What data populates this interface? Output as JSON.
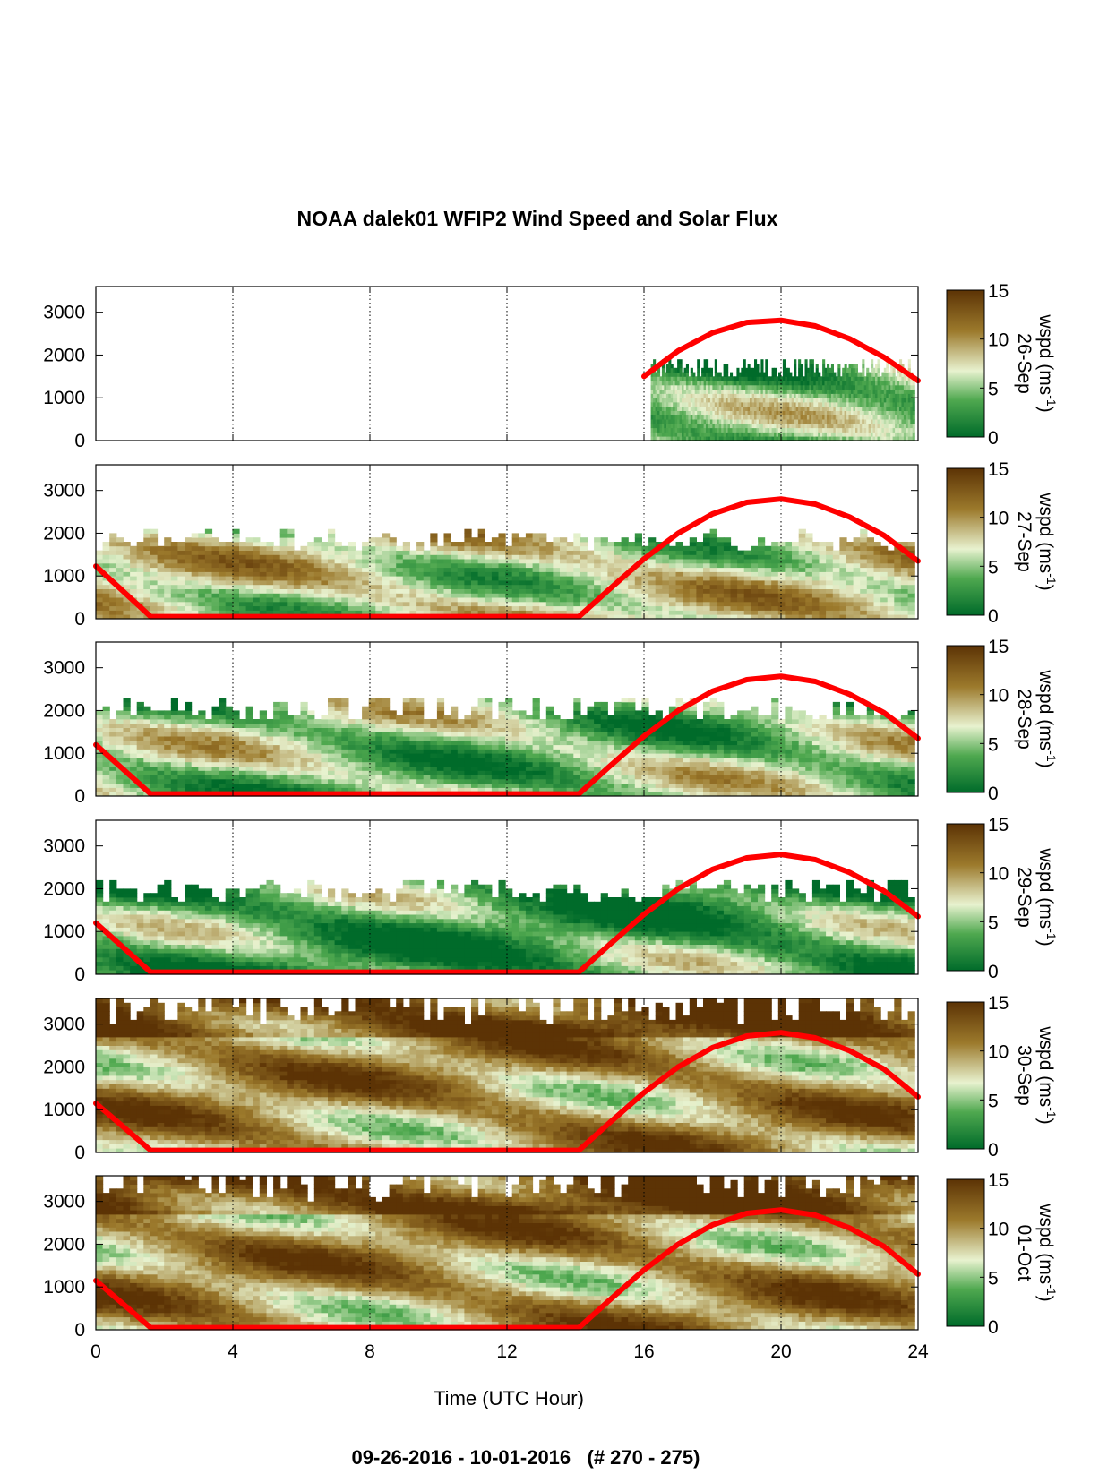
{
  "title": "NOAA dalek01 WFIP2 Wind Speed and Solar Flux",
  "footer": "09-26-2016 - 10-01-2016   (# 270 - 275)",
  "chart_data": {
    "type": "heatmap",
    "title": "NOAA dalek01 WFIP2 Wind Speed and Solar Flux",
    "xlabel": "Time (UTC Hour)",
    "xlim": [
      0,
      24
    ],
    "xticks": [
      "0",
      "4",
      "8",
      "12",
      "16",
      "20",
      "24"
    ],
    "ylim": [
      0,
      3600
    ],
    "yticks": [
      "0",
      "1000",
      "2000",
      "3000"
    ],
    "vertical_gridlines_at": [
      4,
      8,
      12,
      16,
      20,
      24
    ],
    "colorbar": {
      "label_prefix": "wspd (ms",
      "label_exponent": "-1",
      "label_suffix": ")",
      "ticks": [
        "0",
        "5",
        "10",
        "15"
      ],
      "range": [
        0,
        15
      ],
      "colors": [
        "#006b2a",
        "#4fa84f",
        "#e8f2cf",
        "#9c7a2c",
        "#5c3305"
      ]
    },
    "solar_flux_color": "#ff0000",
    "panels": [
      {
        "date": "26-Sep",
        "data_start_hour": 16.2,
        "data_end_hour": 23.9,
        "top_height": 1650,
        "mean_wspd": 4,
        "solar_curve": [
          [
            16.0,
            1500
          ],
          [
            17,
            2100
          ],
          [
            18,
            2520
          ],
          [
            19,
            2760
          ],
          [
            20,
            2810
          ],
          [
            21,
            2680
          ],
          [
            22,
            2380
          ],
          [
            23,
            1950
          ],
          [
            24,
            1400
          ]
        ]
      },
      {
        "date": "27-Sep",
        "data_start_hour": 0,
        "data_end_hour": 23.9,
        "top_height": 1800,
        "mean_wspd": 7,
        "solar_curve": [
          [
            0,
            1230
          ],
          [
            1.6,
            50
          ],
          [
            14.1,
            50
          ],
          [
            15,
            700
          ],
          [
            16,
            1400
          ],
          [
            17,
            2000
          ],
          [
            18,
            2450
          ],
          [
            19,
            2720
          ],
          [
            20,
            2800
          ],
          [
            21,
            2680
          ],
          [
            22,
            2380
          ],
          [
            23,
            1950
          ],
          [
            24,
            1350
          ]
        ]
      },
      {
        "date": "28-Sep",
        "data_start_hour": 0,
        "data_end_hour": 23.9,
        "top_height": 2000,
        "mean_wspd": 5,
        "solar_curve": [
          [
            0,
            1200
          ],
          [
            1.6,
            50
          ],
          [
            14.1,
            50
          ],
          [
            15,
            700
          ],
          [
            16,
            1400
          ],
          [
            17,
            2000
          ],
          [
            18,
            2450
          ],
          [
            19,
            2720
          ],
          [
            20,
            2800
          ],
          [
            21,
            2680
          ],
          [
            22,
            2380
          ],
          [
            23,
            1950
          ],
          [
            24,
            1350
          ]
        ]
      },
      {
        "date": "29-Sep",
        "data_start_hour": 0,
        "data_end_hour": 23.9,
        "top_height": 1900,
        "mean_wspd": 3,
        "solar_curve": [
          [
            0,
            1200
          ],
          [
            1.6,
            50
          ],
          [
            14.1,
            50
          ],
          [
            15,
            700
          ],
          [
            16,
            1400
          ],
          [
            17,
            2000
          ],
          [
            18,
            2450
          ],
          [
            19,
            2720
          ],
          [
            20,
            2800
          ],
          [
            21,
            2680
          ],
          [
            22,
            2380
          ],
          [
            23,
            1950
          ],
          [
            24,
            1350
          ]
        ]
      },
      {
        "date": "30-Sep",
        "data_start_hour": 0,
        "data_end_hour": 23.9,
        "top_height": 3500,
        "mean_wspd": 10,
        "solar_curve": [
          [
            0,
            1150
          ],
          [
            1.6,
            50
          ],
          [
            14.1,
            50
          ],
          [
            15,
            700
          ],
          [
            16,
            1400
          ],
          [
            17,
            2000
          ],
          [
            18,
            2450
          ],
          [
            19,
            2720
          ],
          [
            20,
            2800
          ],
          [
            21,
            2680
          ],
          [
            22,
            2380
          ],
          [
            23,
            1950
          ],
          [
            24,
            1300
          ]
        ]
      },
      {
        "date": "01-Oct",
        "data_start_hour": 0,
        "data_end_hour": 23.9,
        "top_height": 3500,
        "mean_wspd": 10,
        "solar_curve": [
          [
            0,
            1150
          ],
          [
            1.6,
            50
          ],
          [
            14.1,
            50
          ],
          [
            15,
            700
          ],
          [
            16,
            1400
          ],
          [
            17,
            2000
          ],
          [
            18,
            2450
          ],
          [
            19,
            2720
          ],
          [
            20,
            2800
          ],
          [
            21,
            2680
          ],
          [
            22,
            2380
          ],
          [
            23,
            1950
          ],
          [
            24,
            1300
          ]
        ]
      }
    ]
  }
}
